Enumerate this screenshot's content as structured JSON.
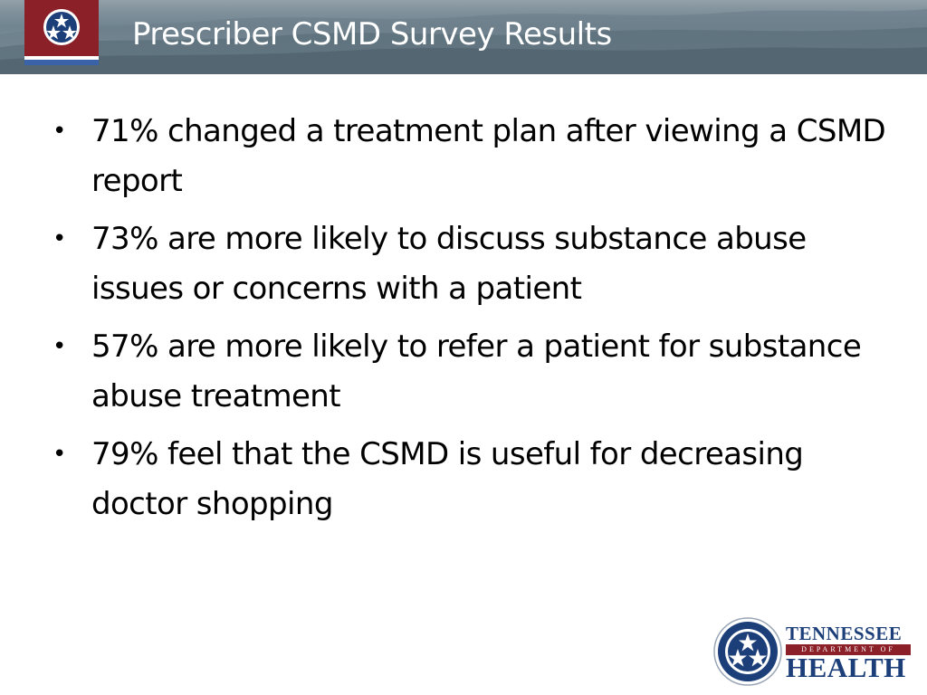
{
  "slide": {
    "title": "Prescriber CSMD Survey Results",
    "bullets": [
      "71% changed a treatment plan after viewing a CSMD report",
      "73% are more likely to discuss substance abuse issues or concerns with a patient",
      "57% are more likely to refer a patient for substance abuse treatment",
      "79% feel that the CSMD is useful for decreasing doctor shopping"
    ],
    "bullet_glyph": "•"
  },
  "logo": {
    "line1": "TENNESSEE",
    "line2": "DEPARTMENT OF",
    "line3": "HEALTH"
  },
  "colors": {
    "header": "#6f8390",
    "logo_red": "#8c2028",
    "logo_blue": "#1c3f7a",
    "title_text": "#ffffff",
    "body_text": "#000000"
  },
  "icons": {
    "header_logo": "tennessee-tristar-shield-icon",
    "footer_logo": "tennessee-tristar-seal-icon"
  }
}
